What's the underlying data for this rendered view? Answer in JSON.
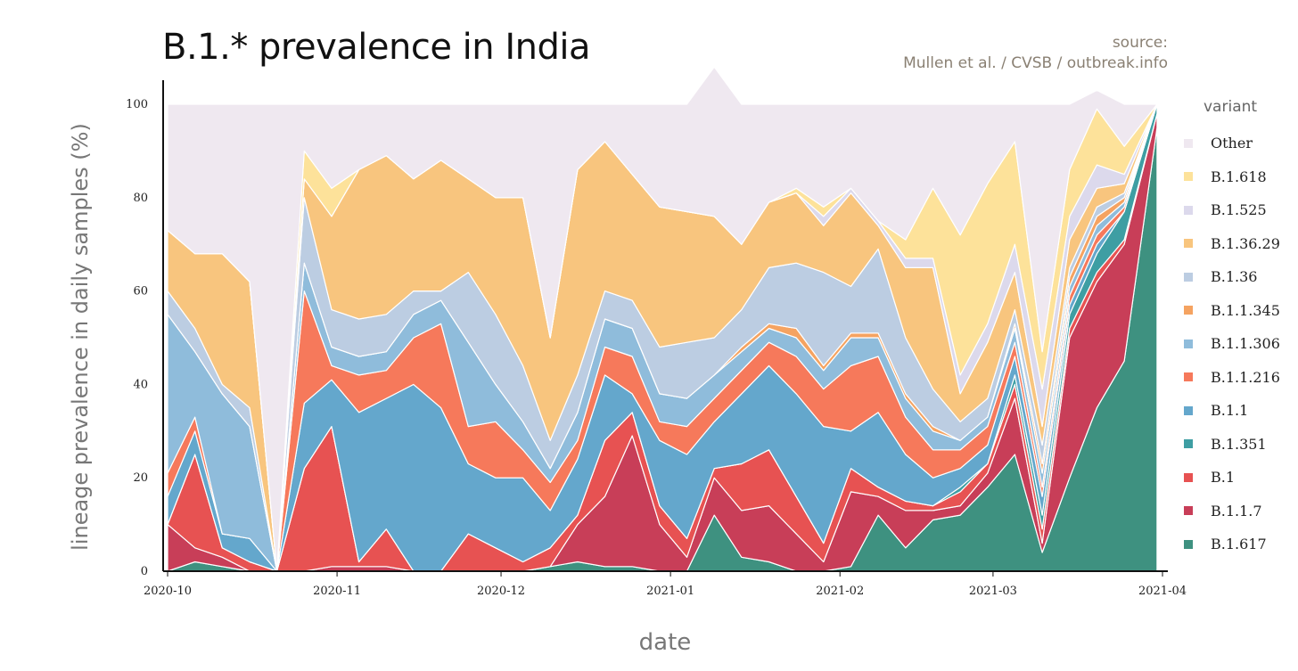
{
  "title": "B.1.* prevalence in India",
  "source_line1": "source:",
  "source_line2": "Mullen et al. / CVSB / outbreak.info",
  "chart_data": {
    "type": "area",
    "stacked": true,
    "title": "B.1.* prevalence in India",
    "xlabel": "date",
    "ylabel": "lineage prevalence in daily samples (%)",
    "ylim": [
      0,
      100
    ],
    "y_ticks": [
      "0",
      "20",
      "40",
      "60",
      "80",
      "100"
    ],
    "x_ticks": [
      "2020-10",
      "2020-11",
      "2020-12",
      "2021-01",
      "2021-02",
      "2021-03",
      "2021-04"
    ],
    "x": [
      "2020-10-01",
      "2020-10-06",
      "2020-10-11",
      "2020-10-16",
      "2020-10-21",
      "2020-10-26",
      "2020-10-31",
      "2020-11-05",
      "2020-11-10",
      "2020-11-15",
      "2020-11-20",
      "2020-11-25",
      "2020-11-30",
      "2020-12-05",
      "2020-12-10",
      "2020-12-15",
      "2020-12-20",
      "2020-12-25",
      "2020-12-30",
      "2021-01-04",
      "2021-01-09",
      "2021-01-14",
      "2021-01-19",
      "2021-01-24",
      "2021-01-29",
      "2021-02-03",
      "2021-02-08",
      "2021-02-13",
      "2021-02-18",
      "2021-02-23",
      "2021-02-28",
      "2021-03-05",
      "2021-03-10",
      "2021-03-15",
      "2021-03-20",
      "2021-03-25",
      "2021-03-31"
    ],
    "legend_title": "variant",
    "legend_position": "right",
    "series": [
      {
        "name": "B.1.617",
        "color": "#3e9180",
        "values": [
          0,
          2,
          1,
          0,
          0,
          0,
          0,
          0,
          0,
          0,
          0,
          0,
          0,
          0,
          1,
          2,
          1,
          1,
          0,
          0,
          12,
          3,
          2,
          0,
          0,
          1,
          12,
          5,
          11,
          12,
          18,
          25,
          4,
          20,
          35,
          45,
          95
        ]
      },
      {
        "name": "B.1.1.7",
        "color": "#c83e58",
        "values": [
          10,
          3,
          2,
          0,
          0,
          0,
          1,
          1,
          1,
          0,
          0,
          0,
          0,
          0,
          0,
          8,
          15,
          28,
          10,
          3,
          8,
          10,
          12,
          8,
          2,
          16,
          4,
          8,
          2,
          2,
          3,
          12,
          2,
          30,
          27,
          25,
          3
        ]
      },
      {
        "name": "B.1",
        "color": "#e75252",
        "values": [
          0,
          20,
          2,
          2,
          0,
          22,
          30,
          1,
          8,
          0,
          0,
          8,
          5,
          2,
          4,
          2,
          12,
          5,
          4,
          4,
          2,
          10,
          12,
          8,
          4,
          5,
          2,
          2,
          1,
          3,
          2,
          3,
          3,
          2,
          2,
          1,
          0
        ]
      },
      {
        "name": "B.1.351",
        "color": "#3e9ea3",
        "values": [
          0,
          0,
          0,
          0,
          0,
          0,
          0,
          0,
          0,
          0,
          0,
          0,
          0,
          0,
          0,
          0,
          0,
          0,
          0,
          0,
          0,
          0,
          0,
          0,
          0,
          0,
          0,
          0,
          0,
          1,
          0,
          2,
          3,
          3,
          4,
          6,
          2
        ]
      },
      {
        "name": "B.1.1",
        "color": "#64a7cc",
        "values": [
          6,
          5,
          3,
          5,
          0,
          14,
          10,
          32,
          28,
          40,
          35,
          15,
          15,
          18,
          8,
          12,
          14,
          4,
          14,
          18,
          10,
          15,
          18,
          22,
          25,
          8,
          16,
          10,
          6,
          4,
          4,
          4,
          4,
          2,
          2,
          0,
          0
        ]
      },
      {
        "name": "B.1.1.216",
        "color": "#f6795b",
        "values": [
          5,
          3,
          0,
          0,
          0,
          24,
          3,
          8,
          6,
          10,
          18,
          8,
          12,
          6,
          6,
          4,
          6,
          8,
          4,
          6,
          5,
          5,
          5,
          8,
          8,
          14,
          12,
          8,
          6,
          4,
          4,
          3,
          2,
          2,
          2,
          1,
          0
        ]
      },
      {
        "name": "B.1.1.306",
        "color": "#8fbcdb",
        "values": [
          34,
          14,
          30,
          24,
          0,
          6,
          4,
          4,
          4,
          5,
          5,
          18,
          8,
          6,
          3,
          6,
          6,
          6,
          6,
          6,
          5,
          4,
          3,
          4,
          4,
          6,
          4,
          4,
          4,
          2,
          2,
          3,
          3,
          2,
          2,
          1,
          0
        ]
      },
      {
        "name": "B.1.1.345",
        "color": "#f5a361",
        "values": [
          0,
          0,
          0,
          0,
          0,
          0,
          0,
          0,
          0,
          0,
          0,
          0,
          0,
          0,
          0,
          0,
          0,
          0,
          0,
          0,
          0,
          1,
          1,
          2,
          1,
          1,
          1,
          1,
          1,
          0,
          0,
          1,
          2,
          2,
          2,
          1,
          0
        ]
      },
      {
        "name": "B.1.36",
        "color": "#bccde2",
        "values": [
          5,
          5,
          2,
          4,
          0,
          14,
          8,
          8,
          8,
          5,
          2,
          15,
          15,
          12,
          6,
          8,
          6,
          6,
          10,
          12,
          8,
          8,
          12,
          14,
          20,
          10,
          18,
          12,
          8,
          4,
          4,
          3,
          4,
          2,
          2,
          1,
          0
        ]
      },
      {
        "name": "B.1.36.29",
        "color": "#f8c57e",
        "values": [
          13,
          16,
          28,
          27,
          0,
          4,
          20,
          32,
          34,
          24,
          28,
          20,
          25,
          36,
          22,
          44,
          32,
          27,
          30,
          28,
          26,
          14,
          14,
          15,
          10,
          20,
          5,
          15,
          26,
          6,
          12,
          8,
          4,
          6,
          4,
          2,
          0
        ]
      },
      {
        "name": "B.1.525",
        "color": "#dcd9ec",
        "values": [
          0,
          0,
          0,
          0,
          0,
          0,
          0,
          0,
          0,
          0,
          0,
          0,
          0,
          0,
          0,
          0,
          0,
          0,
          0,
          0,
          0,
          0,
          0,
          0,
          2,
          1,
          1,
          2,
          2,
          4,
          4,
          6,
          8,
          5,
          5,
          2,
          0
        ]
      },
      {
        "name": "B.1.618",
        "color": "#fde29a",
        "values": [
          0,
          0,
          0,
          0,
          0,
          6,
          6,
          0,
          0,
          0,
          0,
          0,
          0,
          0,
          0,
          0,
          0,
          0,
          0,
          0,
          0,
          0,
          0,
          1,
          2,
          0,
          0,
          4,
          15,
          30,
          30,
          22,
          8,
          10,
          12,
          6,
          0
        ]
      },
      {
        "name": "Other",
        "color": "#efe8f0",
        "values": [
          27,
          32,
          32,
          38,
          100,
          10,
          18,
          14,
          11,
          16,
          12,
          16,
          20,
          20,
          50,
          14,
          8,
          15,
          22,
          23,
          32,
          30,
          21,
          18,
          22,
          18,
          25,
          29,
          18,
          28,
          17,
          8,
          53,
          14,
          4,
          9,
          0
        ]
      }
    ]
  }
}
